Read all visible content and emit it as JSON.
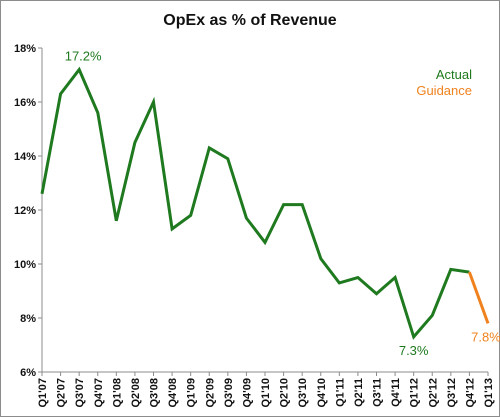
{
  "chart_data": {
    "type": "line",
    "title": "OpEx as % of Revenue",
    "categories": [
      "Q1'07",
      "Q2'07",
      "Q3'07",
      "Q4'07",
      "Q1'08",
      "Q2'08",
      "Q3'08",
      "Q4'08",
      "Q1'09",
      "Q2'09",
      "Q3'09",
      "Q4'09",
      "Q1'10",
      "Q2'10",
      "Q3'10",
      "Q4'10",
      "Q1'11",
      "Q2'11",
      "Q3'11",
      "Q4'11",
      "Q1'12",
      "Q2'12",
      "Q3'12",
      "Q4'12",
      "Q1'13"
    ],
    "series": [
      {
        "name": "Actual",
        "color": "#1f7a1f",
        "values": [
          12.6,
          16.3,
          17.2,
          15.6,
          11.6,
          14.5,
          16.0,
          11.3,
          11.8,
          14.3,
          13.9,
          11.7,
          10.8,
          12.2,
          12.2,
          10.2,
          9.3,
          9.5,
          8.9,
          9.5,
          7.3,
          8.1,
          9.8,
          9.7,
          null
        ]
      },
      {
        "name": "Guidance",
        "color": "#f0821e",
        "values": [
          null,
          null,
          null,
          null,
          null,
          null,
          null,
          null,
          null,
          null,
          null,
          null,
          null,
          null,
          null,
          null,
          null,
          null,
          null,
          null,
          null,
          null,
          null,
          9.7,
          7.8
        ]
      }
    ],
    "yticks": [
      "6%",
      "8%",
      "10%",
      "12%",
      "14%",
      "16%",
      "18%"
    ],
    "ylim": [
      6,
      18
    ],
    "annotations": [
      {
        "label": "17.2%",
        "index": 2,
        "value": 17.2,
        "series": 0
      },
      {
        "label": "7.3%",
        "index": 20,
        "value": 7.3,
        "series": 0
      },
      {
        "label": "7.8%",
        "index": 24,
        "value": 7.8,
        "series": 1
      }
    ],
    "legend": "top-right",
    "grid": false
  }
}
